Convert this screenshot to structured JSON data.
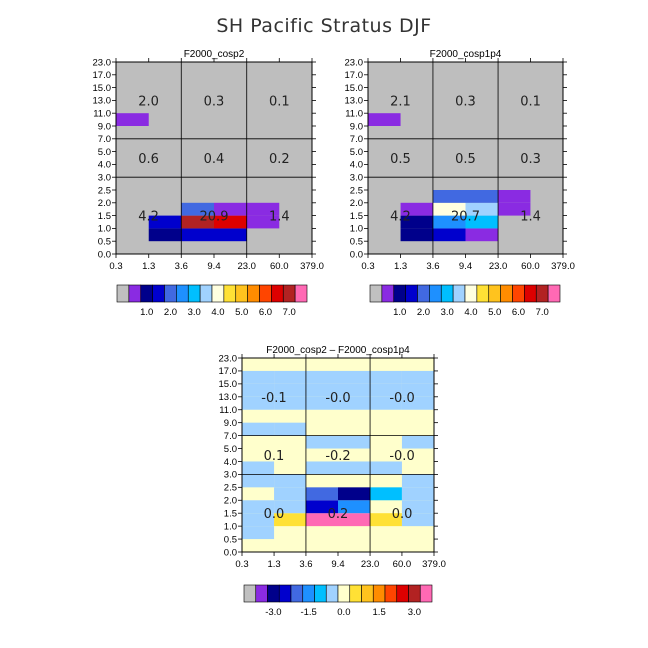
{
  "title": "SH Pacific Stratus DJF",
  "y_ticks": [
    "0.0",
    "0.5",
    "1.0",
    "1.5",
    "2.0",
    "2.5",
    "3.0",
    "4.0",
    "5.0",
    "7.0",
    "9.0",
    "11.0",
    "13.0",
    "15.0",
    "17.0",
    "23.0"
  ],
  "x_ticks": [
    "0.3",
    "1.3",
    "3.6",
    "9.4",
    "23.0",
    "60.0",
    "379.0"
  ],
  "colors": {
    "background_gray": "#bebebe",
    "palette_abs": [
      "#c0c0c0",
      "#8a2be2",
      "#00008b",
      "#0000cd",
      "#4169e1",
      "#1e90ff",
      "#00bfff",
      "#a0d2ff",
      "#ffffe0",
      "#ffe135",
      "#ffc31e",
      "#ff8c00",
      "#ff4500",
      "#dd0000",
      "#b22222",
      "#ff69b4"
    ],
    "palette_diff": [
      "#c0c0c0",
      "#8a2be2",
      "#00008b",
      "#0000cd",
      "#4169e1",
      "#1e90ff",
      "#00bfff",
      "#a0d2ff",
      "#ffffcc",
      "#ffe135",
      "#ffc31e",
      "#ff8c00",
      "#ff4500",
      "#dd0000",
      "#b22222",
      "#ff69b4"
    ]
  },
  "chart_data": [
    {
      "type": "heatmap",
      "title": "F2000_cosp2",
      "x_tick_labels": [
        "0.3",
        "1.3",
        "3.6",
        "9.4",
        "23.0",
        "60.0",
        "379.0"
      ],
      "y_tick_labels": [
        "0.0",
        "0.5",
        "1.0",
        "1.5",
        "2.0",
        "2.5",
        "3.0",
        "4.0",
        "5.0",
        "7.0",
        "9.0",
        "11.0",
        "13.0",
        "15.0",
        "17.0",
        "23.0"
      ],
      "background": "#bebebe",
      "cells": [
        {
          "xi": 0,
          "yi": 10,
          "color": "#8a2be2"
        },
        {
          "xi": 1,
          "yi": 1,
          "color": "#00008b"
        },
        {
          "xi": 1,
          "yi": 2,
          "color": "#0000cd"
        },
        {
          "xi": 2,
          "yi": 1,
          "color": "#0000cd"
        },
        {
          "xi": 2,
          "yi": 2,
          "color": "#b22222"
        },
        {
          "xi": 2,
          "yi": 3,
          "color": "#4169e1"
        },
        {
          "xi": 3,
          "yi": 1,
          "color": "#0000cd"
        },
        {
          "xi": 3,
          "yi": 2,
          "color": "#dd0000"
        },
        {
          "xi": 3,
          "yi": 3,
          "color": "#8a2be2"
        },
        {
          "xi": 4,
          "yi": 2,
          "color": "#8a2be2"
        },
        {
          "xi": 4,
          "yi": 3,
          "color": "#8a2be2"
        }
      ],
      "region_labels": [
        {
          "x": "low",
          "y": "high",
          "text": "2.0"
        },
        {
          "x": "mid",
          "y": "high",
          "text": "0.3"
        },
        {
          "x": "high",
          "y": "high",
          "text": "0.1"
        },
        {
          "x": "low",
          "y": "mid",
          "text": "0.6"
        },
        {
          "x": "mid",
          "y": "mid",
          "text": "0.4"
        },
        {
          "x": "high",
          "y": "mid",
          "text": "0.2"
        },
        {
          "x": "low",
          "y": "low",
          "text": "4.2"
        },
        {
          "x": "mid",
          "y": "low",
          "text": "20.9"
        },
        {
          "x": "high",
          "y": "low",
          "text": "1.4"
        }
      ],
      "colorbar": {
        "colors": [
          "#c0c0c0",
          "#8a2be2",
          "#00008b",
          "#0000cd",
          "#4169e1",
          "#1e90ff",
          "#00bfff",
          "#a0d2ff",
          "#ffffe0",
          "#ffe135",
          "#ffc31e",
          "#ff8c00",
          "#ff4500",
          "#dd0000",
          "#b22222",
          "#ff69b4"
        ],
        "labels": [
          "1.0",
          "2.0",
          "3.0",
          "4.0",
          "5.0",
          "6.0",
          "7.0"
        ]
      }
    },
    {
      "type": "heatmap",
      "title": "F2000_cosp1p4",
      "x_tick_labels": [
        "0.3",
        "1.3",
        "3.6",
        "9.4",
        "23.0",
        "60.0",
        "379.0"
      ],
      "y_tick_labels": [
        "0.0",
        "0.5",
        "1.0",
        "1.5",
        "2.0",
        "2.5",
        "3.0",
        "4.0",
        "5.0",
        "7.0",
        "9.0",
        "11.0",
        "13.0",
        "15.0",
        "17.0",
        "23.0"
      ],
      "background": "#bebebe",
      "cells": [
        {
          "xi": 0,
          "yi": 10,
          "color": "#8a2be2"
        },
        {
          "xi": 1,
          "yi": 1,
          "color": "#00008b"
        },
        {
          "xi": 1,
          "yi": 2,
          "color": "#00008b"
        },
        {
          "xi": 1,
          "yi": 3,
          "color": "#8a2be2"
        },
        {
          "xi": 2,
          "yi": 1,
          "color": "#0000cd"
        },
        {
          "xi": 2,
          "yi": 2,
          "color": "#1e90ff"
        },
        {
          "xi": 2,
          "yi": 3,
          "color": "#ffffe0"
        },
        {
          "xi": 2,
          "yi": 4,
          "color": "#4169e1"
        },
        {
          "xi": 3,
          "yi": 1,
          "color": "#8a2be2"
        },
        {
          "xi": 3,
          "yi": 2,
          "color": "#00bfff"
        },
        {
          "xi": 3,
          "yi": 3,
          "color": "#a0d2ff"
        },
        {
          "xi": 3,
          "yi": 4,
          "color": "#4169e1"
        },
        {
          "xi": 4,
          "yi": 3,
          "color": "#8a2be2"
        },
        {
          "xi": 4,
          "yi": 4,
          "color": "#8a2be2"
        }
      ],
      "region_labels": [
        {
          "x": "low",
          "y": "high",
          "text": "2.1"
        },
        {
          "x": "mid",
          "y": "high",
          "text": "0.3"
        },
        {
          "x": "high",
          "y": "high",
          "text": "0.1"
        },
        {
          "x": "low",
          "y": "mid",
          "text": "0.5"
        },
        {
          "x": "mid",
          "y": "mid",
          "text": "0.5"
        },
        {
          "x": "high",
          "y": "mid",
          "text": "0.3"
        },
        {
          "x": "low",
          "y": "low",
          "text": "4.2"
        },
        {
          "x": "mid",
          "y": "low",
          "text": "20.7"
        },
        {
          "x": "high",
          "y": "low",
          "text": "1.4"
        }
      ],
      "colorbar": {
        "colors": [
          "#c0c0c0",
          "#8a2be2",
          "#00008b",
          "#0000cd",
          "#4169e1",
          "#1e90ff",
          "#00bfff",
          "#a0d2ff",
          "#ffffe0",
          "#ffe135",
          "#ffc31e",
          "#ff8c00",
          "#ff4500",
          "#dd0000",
          "#b22222",
          "#ff69b4"
        ],
        "labels": [
          "1.0",
          "2.0",
          "3.0",
          "4.0",
          "5.0",
          "6.0",
          "7.0"
        ]
      }
    },
    {
      "type": "heatmap",
      "title": "F2000_cosp2 – F2000_cosp1p4",
      "x_tick_labels": [
        "0.3",
        "1.3",
        "3.6",
        "9.4",
        "23.0",
        "60.0",
        "379.0"
      ],
      "y_tick_labels": [
        "0.0",
        "0.5",
        "1.0",
        "1.5",
        "2.0",
        "2.5",
        "3.0",
        "4.0",
        "5.0",
        "7.0",
        "9.0",
        "11.0",
        "13.0",
        "15.0",
        "17.0",
        "23.0"
      ],
      "background": "#ffffcc",
      "cells": [
        {
          "xi": 0,
          "yi": 1,
          "color": "#a0d2ff"
        },
        {
          "xi": 0,
          "yi": 2,
          "color": "#a0d2ff"
        },
        {
          "xi": 0,
          "yi": 3,
          "color": "#a0d2ff"
        },
        {
          "xi": 0,
          "yi": 5,
          "color": "#a0d2ff"
        },
        {
          "xi": 0,
          "yi": 6,
          "color": "#a0d2ff"
        },
        {
          "xi": 0,
          "yi": 9,
          "color": "#a0d2ff"
        },
        {
          "xi": 0,
          "yi": 11,
          "color": "#a0d2ff"
        },
        {
          "xi": 0,
          "yi": 12,
          "color": "#a0d2ff"
        },
        {
          "xi": 0,
          "yi": 13,
          "color": "#a0d2ff"
        },
        {
          "xi": 1,
          "yi": 0,
          "color": "#ffffcc"
        },
        {
          "xi": 1,
          "yi": 2,
          "color": "#ffe135"
        },
        {
          "xi": 1,
          "yi": 3,
          "color": "#a0d2ff"
        },
        {
          "xi": 1,
          "yi": 4,
          "color": "#a0d2ff"
        },
        {
          "xi": 1,
          "yi": 5,
          "color": "#a0d2ff"
        },
        {
          "xi": 1,
          "yi": 9,
          "color": "#a0d2ff"
        },
        {
          "xi": 1,
          "yi": 11,
          "color": "#a0d2ff"
        },
        {
          "xi": 1,
          "yi": 12,
          "color": "#a0d2ff"
        },
        {
          "xi": 1,
          "yi": 13,
          "color": "#a0d2ff"
        },
        {
          "xi": 2,
          "yi": 2,
          "color": "#ff69b4"
        },
        {
          "xi": 2,
          "yi": 3,
          "color": "#0000cd"
        },
        {
          "xi": 2,
          "yi": 4,
          "color": "#4169e1"
        },
        {
          "xi": 2,
          "yi": 6,
          "color": "#a0d2ff"
        },
        {
          "xi": 2,
          "yi": 8,
          "color": "#a0d2ff"
        },
        {
          "xi": 2,
          "yi": 11,
          "color": "#a0d2ff"
        },
        {
          "xi": 2,
          "yi": 12,
          "color": "#a0d2ff"
        },
        {
          "xi": 2,
          "yi": 13,
          "color": "#a0d2ff"
        },
        {
          "xi": 3,
          "yi": 2,
          "color": "#ff69b4"
        },
        {
          "xi": 3,
          "yi": 3,
          "color": "#1e90ff"
        },
        {
          "xi": 3,
          "yi": 4,
          "color": "#00008b"
        },
        {
          "xi": 3,
          "yi": 6,
          "color": "#a0d2ff"
        },
        {
          "xi": 3,
          "yi": 8,
          "color": "#a0d2ff"
        },
        {
          "xi": 3,
          "yi": 11,
          "color": "#a0d2ff"
        },
        {
          "xi": 3,
          "yi": 12,
          "color": "#a0d2ff"
        },
        {
          "xi": 3,
          "yi": 13,
          "color": "#a0d2ff"
        },
        {
          "xi": 4,
          "yi": 2,
          "color": "#ffe135"
        },
        {
          "xi": 4,
          "yi": 4,
          "color": "#00bfff"
        },
        {
          "xi": 4,
          "yi": 6,
          "color": "#a0d2ff"
        },
        {
          "xi": 4,
          "yi": 11,
          "color": "#a0d2ff"
        },
        {
          "xi": 4,
          "yi": 12,
          "color": "#a0d2ff"
        },
        {
          "xi": 4,
          "yi": 13,
          "color": "#a0d2ff"
        },
        {
          "xi": 5,
          "yi": 2,
          "color": "#a0d2ff"
        },
        {
          "xi": 5,
          "yi": 3,
          "color": "#a0d2ff"
        },
        {
          "xi": 5,
          "yi": 4,
          "color": "#a0d2ff"
        },
        {
          "xi": 5,
          "yi": 5,
          "color": "#a0d2ff"
        },
        {
          "xi": 5,
          "yi": 8,
          "color": "#a0d2ff"
        },
        {
          "xi": 5,
          "yi": 11,
          "color": "#a0d2ff"
        },
        {
          "xi": 5,
          "yi": 12,
          "color": "#a0d2ff"
        },
        {
          "xi": 5,
          "yi": 13,
          "color": "#a0d2ff"
        }
      ],
      "region_labels": [
        {
          "x": "low",
          "y": "high",
          "text": "-0.1"
        },
        {
          "x": "mid",
          "y": "high",
          "text": "-0.0"
        },
        {
          "x": "high",
          "y": "high",
          "text": "-0.0"
        },
        {
          "x": "low",
          "y": "mid",
          "text": "0.1"
        },
        {
          "x": "mid",
          "y": "mid",
          "text": "-0.2"
        },
        {
          "x": "high",
          "y": "mid",
          "text": "-0.0"
        },
        {
          "x": "low",
          "y": "low",
          "text": "0.0"
        },
        {
          "x": "mid",
          "y": "low",
          "text": "0.2"
        },
        {
          "x": "high",
          "y": "low",
          "text": "0.0"
        }
      ],
      "colorbar": {
        "colors": [
          "#c0c0c0",
          "#8a2be2",
          "#00008b",
          "#0000cd",
          "#4169e1",
          "#1e90ff",
          "#00bfff",
          "#a0d2ff",
          "#ffffcc",
          "#ffe135",
          "#ffc31e",
          "#ff8c00",
          "#ff4500",
          "#dd0000",
          "#b22222",
          "#ff69b4"
        ],
        "labels": [
          "-3.0",
          "-1.5",
          "0.0",
          "1.5",
          "3.0"
        ]
      }
    }
  ]
}
